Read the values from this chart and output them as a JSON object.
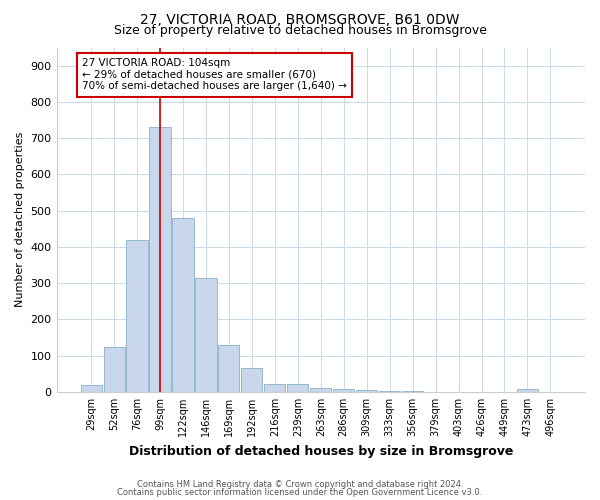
{
  "title_line1": "27, VICTORIA ROAD, BROMSGROVE, B61 0DW",
  "title_line2": "Size of property relative to detached houses in Bromsgrove",
  "xlabel": "Distribution of detached houses by size in Bromsgrove",
  "ylabel": "Number of detached properties",
  "categories": [
    "29sqm",
    "52sqm",
    "76sqm",
    "99sqm",
    "122sqm",
    "146sqm",
    "169sqm",
    "192sqm",
    "216sqm",
    "239sqm",
    "263sqm",
    "286sqm",
    "309sqm",
    "333sqm",
    "356sqm",
    "379sqm",
    "403sqm",
    "426sqm",
    "449sqm",
    "473sqm",
    "496sqm"
  ],
  "values": [
    20,
    125,
    420,
    730,
    480,
    315,
    130,
    65,
    22,
    22,
    10,
    8,
    5,
    3,
    2,
    1,
    1,
    1,
    1,
    8,
    1
  ],
  "bar_color": "#c8d8ea",
  "bar_edgecolor": "#8ab0cc",
  "vline_x": 3,
  "vline_color": "#cc0000",
  "annotation_text": "27 VICTORIA ROAD: 104sqm\n← 29% of detached houses are smaller (670)\n70% of semi-detached houses are larger (1,640) →",
  "annotation_box_color": "#cc0000",
  "ylim": [
    0,
    950
  ],
  "yticks": [
    0,
    100,
    200,
    300,
    400,
    500,
    600,
    700,
    800,
    900
  ],
  "footer_line1": "Contains HM Land Registry data © Crown copyright and database right 2024.",
  "footer_line2": "Contains public sector information licensed under the Open Government Licence v3.0.",
  "bg_color": "#ffffff",
  "grid_color": "#c8d8e8"
}
